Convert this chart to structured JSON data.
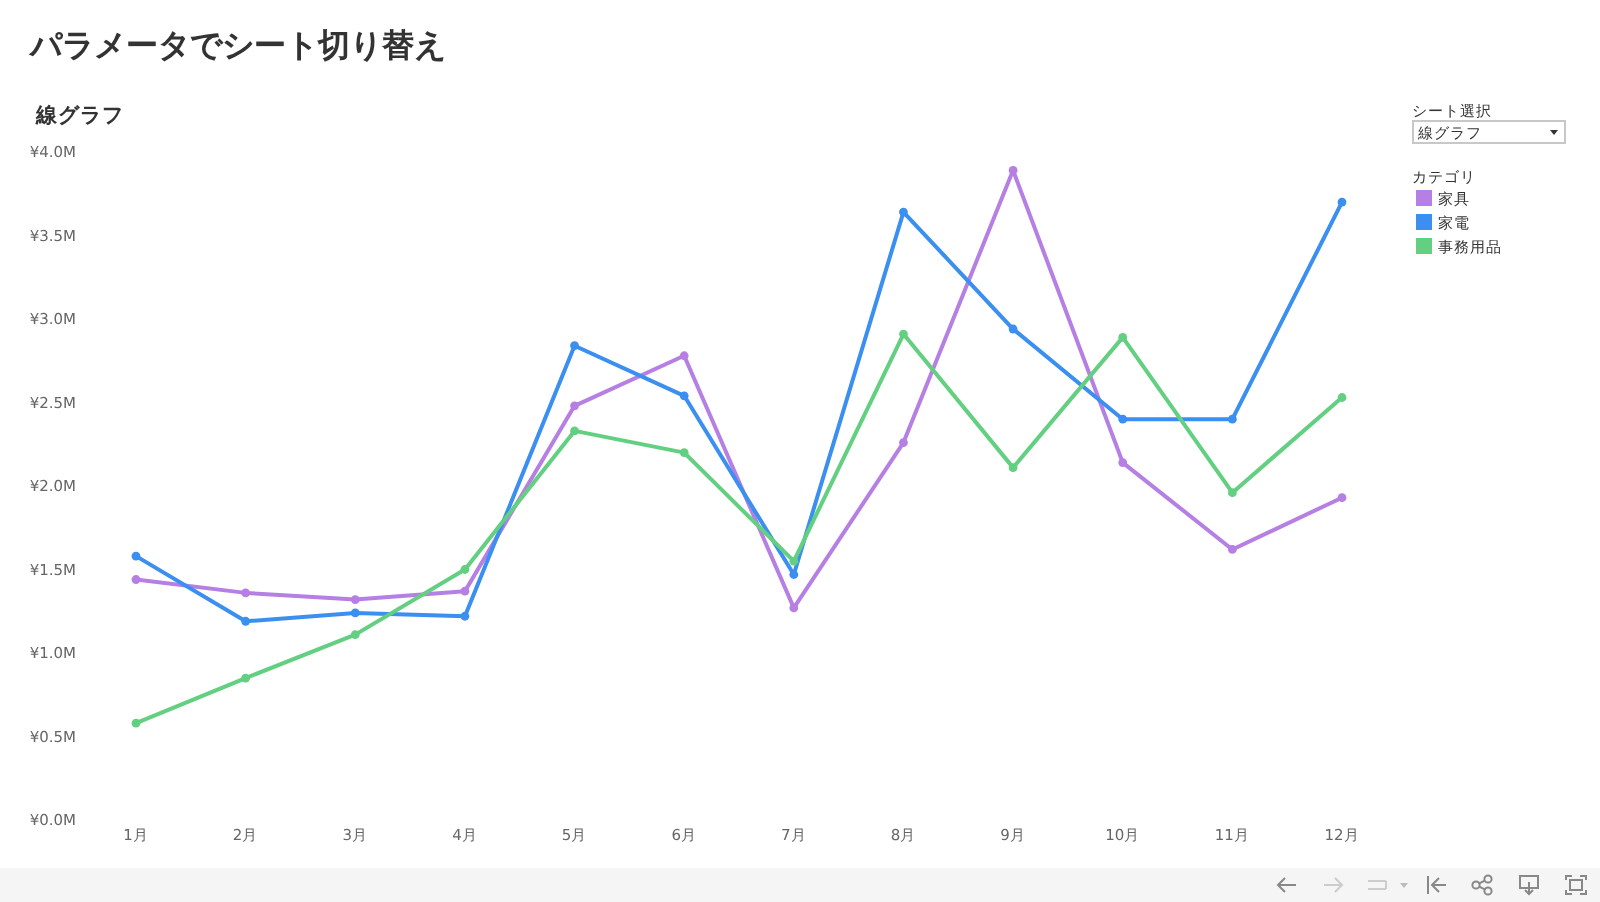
{
  "chart_data": {
    "type": "line",
    "title": "パラメータでシート切り替え",
    "subtitle": "線グラフ",
    "legend_title": "カテゴリ",
    "annotations": [
      "シート選択",
      "線グラフ"
    ],
    "categories": [
      "1月",
      "2月",
      "3月",
      "4月",
      "5月",
      "6月",
      "7月",
      "8月",
      "9月",
      "10月",
      "11月",
      "12月"
    ],
    "series": [
      {
        "name": "家具",
        "color": "#b67fe3",
        "values": [
          1.44,
          1.36,
          1.32,
          1.37,
          2.48,
          2.78,
          1.27,
          2.26,
          3.89,
          2.14,
          1.62,
          1.93
        ]
      },
      {
        "name": "家電",
        "color": "#3a8ff0",
        "values": [
          1.58,
          1.19,
          1.24,
          1.22,
          2.84,
          2.54,
          1.47,
          3.64,
          2.94,
          2.4,
          2.4,
          3.7
        ]
      },
      {
        "name": "事務用品",
        "color": "#63cf80",
        "values": [
          0.58,
          0.85,
          1.11,
          1.5,
          2.33,
          2.2,
          1.55,
          2.91,
          2.11,
          2.89,
          1.96,
          2.53
        ]
      }
    ],
    "ylim": [
      0,
      4.0
    ],
    "yticks": [
      {
        "value": 0,
        "label": "¥0.0M"
      },
      {
        "value": 0.5,
        "label": "¥0.5M"
      },
      {
        "value": 1.0,
        "label": "¥1.0M"
      },
      {
        "value": 1.5,
        "label": "¥1.5M"
      },
      {
        "value": 2.0,
        "label": "¥2.0M"
      },
      {
        "value": 2.5,
        "label": "¥2.5M"
      },
      {
        "value": 3.0,
        "label": "¥3.0M"
      },
      {
        "value": 3.5,
        "label": "¥3.5M"
      },
      {
        "value": 4.0,
        "label": "¥4.0M"
      }
    ],
    "legend": "top right",
    "marker": "circle",
    "line_style": "solid"
  }
}
